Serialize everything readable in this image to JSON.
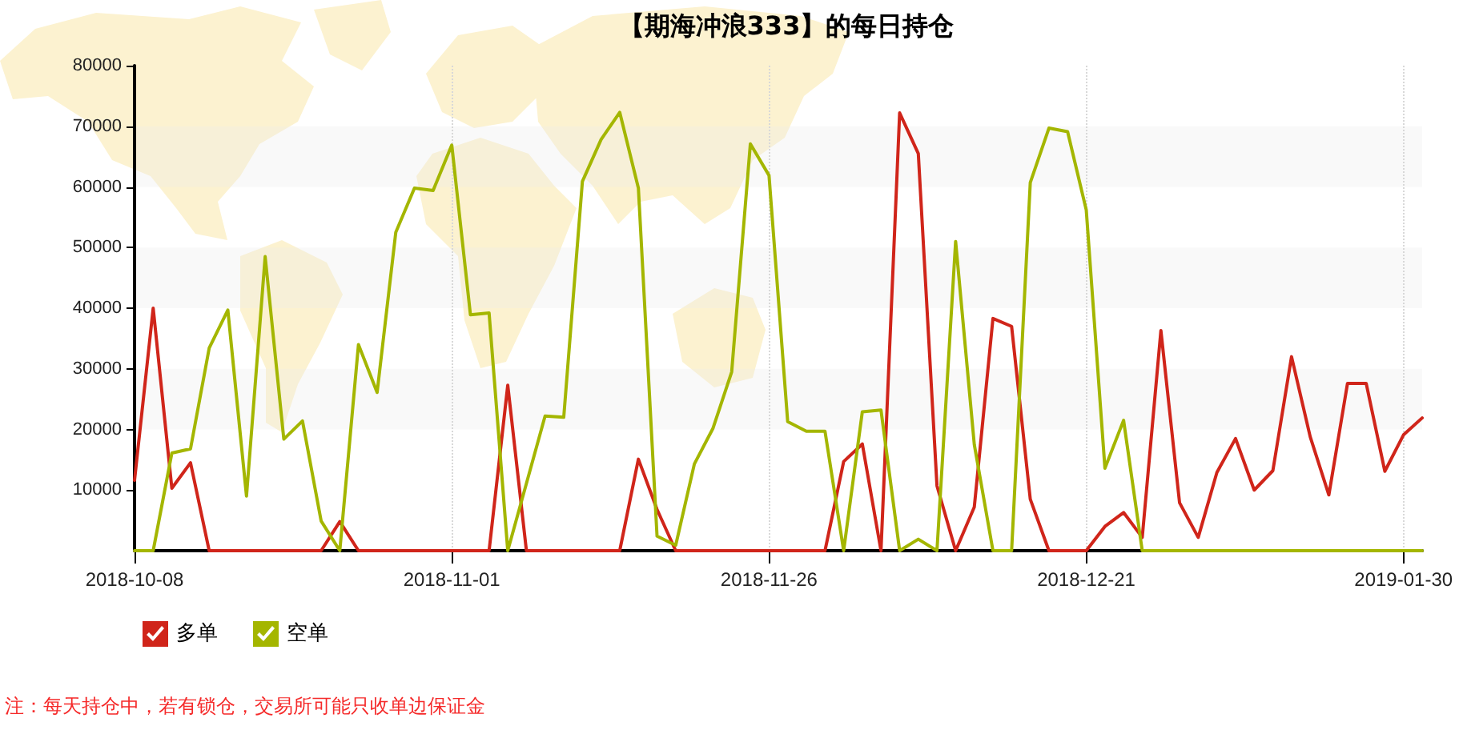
{
  "chart_data": {
    "type": "line",
    "title": "【期海冲浪333】的每日持仓",
    "categories": [
      "2018-10-08",
      null,
      null,
      null,
      null,
      null,
      null,
      null,
      null,
      null,
      null,
      null,
      null,
      null,
      null,
      null,
      null,
      "2018-11-01",
      null,
      null,
      null,
      null,
      null,
      null,
      null,
      null,
      null,
      null,
      null,
      null,
      null,
      null,
      null,
      null,
      "2018-11-26",
      null,
      null,
      null,
      null,
      null,
      null,
      null,
      null,
      null,
      null,
      null,
      null,
      null,
      null,
      null,
      null,
      "2018-12-21",
      null,
      null,
      null,
      null,
      null,
      null,
      null,
      null,
      null,
      null,
      null,
      null,
      null,
      null,
      null,
      null,
      "2019-01-30",
      null
    ],
    "series": [
      {
        "name": "多单",
        "color": "#d0251a",
        "values": [
          11600,
          40000,
          10300,
          14500,
          0,
          0,
          0,
          0,
          0,
          0,
          0,
          4800,
          0,
          0,
          0,
          0,
          0,
          0,
          0,
          0,
          27300,
          0,
          0,
          0,
          0,
          0,
          0,
          15100,
          6800,
          0,
          0,
          0,
          0,
          0,
          0,
          0,
          0,
          0,
          14700,
          17600,
          0,
          72200,
          65500,
          10700,
          0,
          7200,
          38300,
          37000,
          8500,
          0,
          0,
          0,
          4000,
          6300,
          2200,
          36300,
          7900,
          2200,
          12900,
          18500,
          10000,
          13200,
          32000,
          18800,
          9200,
          27600,
          27600,
          13100,
          19100,
          21900
        ]
      },
      {
        "name": "空单",
        "color": "#a4b600",
        "values": [
          0,
          0,
          16100,
          16800,
          33400,
          39700,
          9000,
          48500,
          18400,
          21400,
          4900,
          0,
          34000,
          26100,
          52500,
          59800,
          59400,
          66900,
          38900,
          39200,
          0,
          11100,
          22200,
          22000,
          60900,
          67800,
          72300,
          59800,
          2400,
          900,
          14300,
          20200,
          29500,
          67100,
          61900,
          21300,
          19700,
          19700,
          0,
          22900,
          23200,
          0,
          1900,
          0,
          51000,
          17500,
          0,
          0,
          60700,
          69700,
          69100,
          56200,
          13600,
          21500,
          0,
          0,
          0,
          0,
          0,
          0,
          0,
          0,
          0,
          0,
          0,
          0,
          0,
          0,
          0,
          0
        ]
      }
    ],
    "ylim": [
      0,
      80000
    ],
    "yticks": [
      10000,
      20000,
      30000,
      40000,
      50000,
      60000,
      70000,
      80000
    ],
    "grid": true,
    "legend": "bottom left",
    "marker": "none",
    "line_style": "solid",
    "annotations": [
      "注：每天持仓中，若有锁仓，交易所可能只收单边保证金"
    ]
  }
}
